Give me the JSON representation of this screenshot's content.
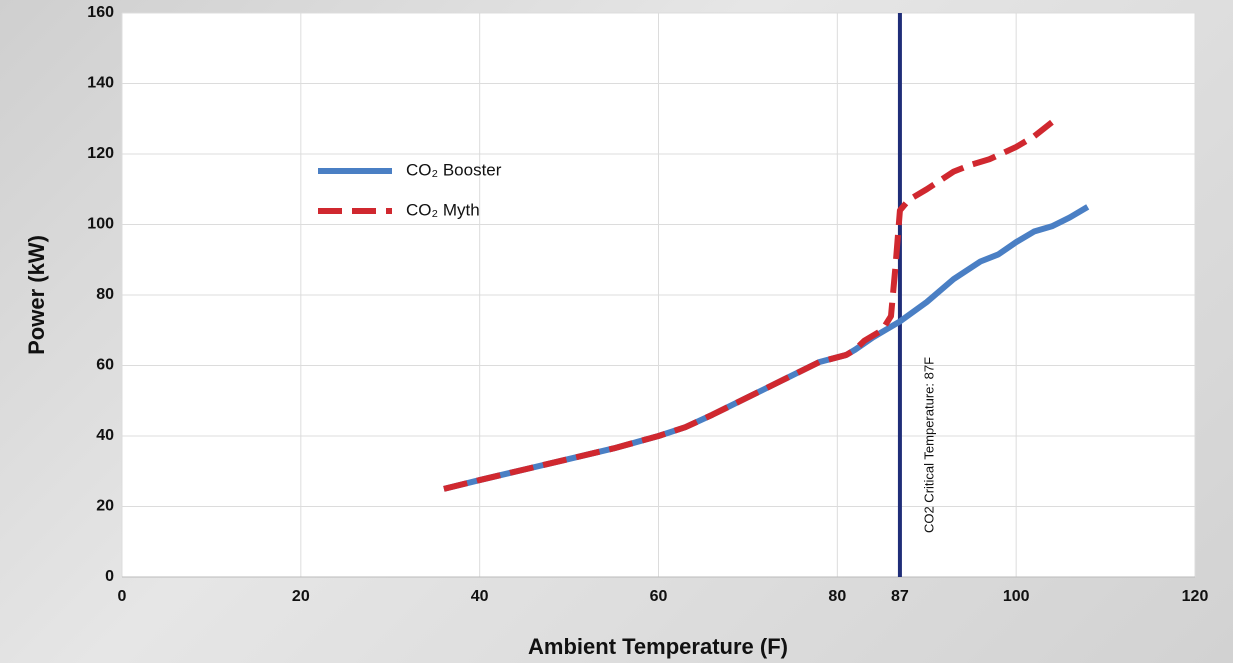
{
  "chart_data": {
    "type": "line",
    "xlabel": "Ambient Temperature (F)",
    "ylabel": "Power (kW)",
    "xlim": [
      0,
      120
    ],
    "xticks": [
      0,
      20,
      40,
      60,
      80,
      87,
      100,
      120
    ],
    "ylim": [
      0,
      160
    ],
    "yticks": [
      0,
      20,
      40,
      60,
      80,
      100,
      120,
      140,
      160
    ],
    "grid": true,
    "legend": "upper left",
    "annotation": {
      "text": "CO2 Critical Temperature: 87F",
      "x": 87,
      "color": "#1f2d78"
    },
    "series": [
      {
        "name": "CO₂ Booster",
        "color": "#4a7fc4",
        "dashed": false,
        "x": [
          36,
          40,
          45,
          50,
          55,
          60,
          63,
          66,
          70,
          74,
          78,
          81,
          82,
          84,
          87,
          90,
          93,
          96,
          98,
          100,
          102,
          104,
          106,
          108
        ],
        "values": [
          25,
          27.5,
          30.5,
          33.5,
          36.5,
          40,
          42.5,
          46,
          51,
          56,
          61,
          63,
          64.5,
          68,
          72.5,
          78,
          84.5,
          89.5,
          91.5,
          95,
          98,
          99.5,
          102,
          105
        ]
      },
      {
        "name": "CO₂ Myth",
        "color": "#d0282f",
        "dashed": true,
        "x": [
          36,
          40,
          45,
          50,
          55,
          60,
          63,
          66,
          70,
          74,
          78,
          81,
          82,
          83,
          85,
          86,
          86.5,
          87,
          88,
          90,
          93,
          95,
          97,
          100,
          102,
          104
        ],
        "values": [
          25,
          27.5,
          30.5,
          33.5,
          36.5,
          40,
          42.5,
          46,
          51,
          56,
          61,
          63,
          64.5,
          67,
          70,
          74,
          88,
          104,
          107,
          110,
          115,
          117,
          118.5,
          122,
          125,
          129
        ]
      }
    ]
  }
}
